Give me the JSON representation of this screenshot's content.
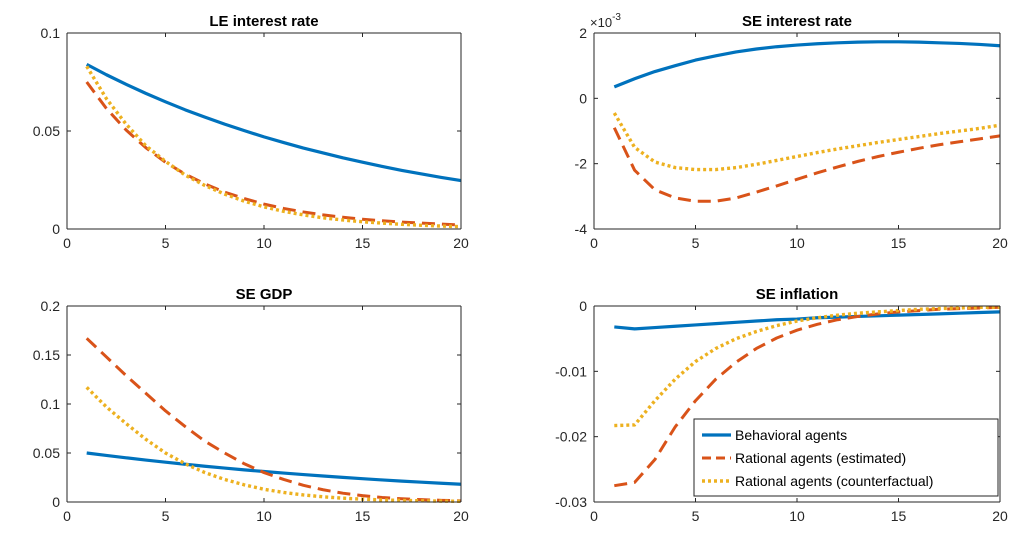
{
  "series_styles": [
    {
      "name": "Behavioral agents",
      "color": "#0072BD",
      "dash": "",
      "width": 3.2
    },
    {
      "name": "Rational agents (estimated)",
      "color": "#D95319",
      "dash": "13 7",
      "width": 3
    },
    {
      "name": "Rational agents (counterfactual)",
      "color": "#EDB120",
      "dash": "3 3",
      "width": 3.4
    }
  ],
  "legend": {
    "placement": "bottom-right of SE inflation panel",
    "entries": [
      "Behavioral agents",
      "Rational agents (estimated)",
      "Rational agents (counterfactual)"
    ]
  },
  "chart_data": [
    {
      "id": "le-rate",
      "type": "line",
      "title": "LE interest rate",
      "xlabel": "",
      "ylabel": "",
      "xlim": [
        0,
        20
      ],
      "ylim": [
        0,
        0.1
      ],
      "xticks": [
        0,
        5,
        10,
        15,
        20
      ],
      "xtick_labels": [
        "0",
        "5",
        "10",
        "15",
        "20"
      ],
      "yticks": [
        0,
        0.05,
        0.1
      ],
      "ytick_labels": [
        "0",
        "0.05",
        "0.1"
      ],
      "x": [
        1,
        2,
        3,
        4,
        5,
        6,
        7,
        8,
        9,
        10,
        11,
        12,
        13,
        14,
        15,
        16,
        17,
        18,
        19,
        20
      ],
      "series": [
        {
          "name": "Behavioral agents",
          "values": [
            0.084,
            0.0787,
            0.0738,
            0.0692,
            0.0649,
            0.0608,
            0.0571,
            0.0535,
            0.0502,
            0.047,
            0.0441,
            0.0413,
            0.0388,
            0.0363,
            0.0341,
            0.0319,
            0.0299,
            0.0281,
            0.0263,
            0.0247
          ]
        },
        {
          "name": "Rational agents (estimated)",
          "values": [
            0.075,
            0.0615,
            0.0505,
            0.0415,
            0.034,
            0.028,
            0.023,
            0.0188,
            0.0155,
            0.0127,
            0.0105,
            0.0087,
            0.0072,
            0.006,
            0.005,
            0.0042,
            0.0035,
            0.003,
            0.0025,
            0.002
          ]
        },
        {
          "name": "Rational agents (counterfactual)",
          "values": [
            0.083,
            0.0665,
            0.0535,
            0.0425,
            0.0345,
            0.0275,
            0.0222,
            0.0178,
            0.0142,
            0.0113,
            0.009,
            0.0072,
            0.0057,
            0.0046,
            0.0037,
            0.003,
            0.0024,
            0.0019,
            0.0015,
            0.0012
          ]
        }
      ]
    },
    {
      "id": "se-rate",
      "type": "line",
      "title": "SE interest rate",
      "xlabel": "",
      "ylabel": "",
      "exponent_label": "×10",
      "exponent_power": "-3",
      "xlim": [
        0,
        20
      ],
      "ylim": [
        -4,
        2
      ],
      "xticks": [
        0,
        5,
        10,
        15,
        20
      ],
      "xtick_labels": [
        "0",
        "5",
        "10",
        "15",
        "20"
      ],
      "yticks": [
        -4,
        -2,
        0,
        2
      ],
      "ytick_labels": [
        "-4",
        "-2",
        "0",
        "2"
      ],
      "x": [
        1,
        2,
        3,
        4,
        5,
        6,
        7,
        8,
        9,
        10,
        11,
        12,
        13,
        14,
        15,
        16,
        17,
        18,
        19,
        20
      ],
      "series": [
        {
          "name": "Behavioral agents",
          "values": [
            0.35,
            0.6,
            0.82,
            1.0,
            1.17,
            1.3,
            1.42,
            1.51,
            1.58,
            1.63,
            1.67,
            1.7,
            1.72,
            1.73,
            1.73,
            1.72,
            1.7,
            1.68,
            1.65,
            1.61
          ]
        },
        {
          "name": "Rational agents (estimated)",
          "values": [
            -0.9,
            -2.2,
            -2.8,
            -3.05,
            -3.15,
            -3.15,
            -3.05,
            -2.87,
            -2.68,
            -2.48,
            -2.28,
            -2.1,
            -1.93,
            -1.78,
            -1.65,
            -1.53,
            -1.42,
            -1.33,
            -1.24,
            -1.15
          ]
        },
        {
          "name": "Rational agents (counterfactual)",
          "values": [
            -0.45,
            -1.5,
            -1.95,
            -2.12,
            -2.18,
            -2.18,
            -2.12,
            -2.02,
            -1.9,
            -1.78,
            -1.66,
            -1.55,
            -1.45,
            -1.35,
            -1.26,
            -1.17,
            -1.08,
            -1.0,
            -0.92,
            -0.82
          ]
        }
      ]
    },
    {
      "id": "se-gdp",
      "type": "line",
      "title": "SE GDP",
      "xlabel": "",
      "ylabel": "",
      "xlim": [
        0,
        20
      ],
      "ylim": [
        0,
        0.2
      ],
      "xticks": [
        0,
        5,
        10,
        15,
        20
      ],
      "xtick_labels": [
        "0",
        "5",
        "10",
        "15",
        "20"
      ],
      "yticks": [
        0,
        0.05,
        0.1,
        0.15,
        0.2
      ],
      "ytick_labels": [
        "0",
        "0.05",
        "0.1",
        "0.15",
        "0.2"
      ],
      "x": [
        1,
        2,
        3,
        4,
        5,
        6,
        7,
        8,
        9,
        10,
        11,
        12,
        13,
        14,
        15,
        16,
        17,
        18,
        19,
        20
      ],
      "series": [
        {
          "name": "Behavioral agents",
          "values": [
            0.05,
            0.0475,
            0.0451,
            0.0428,
            0.0406,
            0.0385,
            0.0365,
            0.0346,
            0.0328,
            0.0311,
            0.0295,
            0.028,
            0.0265,
            0.0251,
            0.0238,
            0.0225,
            0.0213,
            0.0202,
            0.0191,
            0.0181
          ]
        },
        {
          "name": "Rational agents (estimated)",
          "values": [
            0.167,
            0.148,
            0.129,
            0.111,
            0.093,
            0.077,
            0.062,
            0.05,
            0.039,
            0.03,
            0.023,
            0.017,
            0.0125,
            0.009,
            0.0065,
            0.0046,
            0.0033,
            0.0024,
            0.0017,
            0.0012
          ]
        },
        {
          "name": "Rational agents (counterfactual)",
          "values": [
            0.117,
            0.097,
            0.08,
            0.064,
            0.05,
            0.039,
            0.03,
            0.023,
            0.0175,
            0.013,
            0.0097,
            0.0072,
            0.0053,
            0.0039,
            0.0029,
            0.0021,
            0.0016,
            0.0012,
            0.0009,
            0.0007
          ]
        }
      ]
    },
    {
      "id": "se-inflation",
      "type": "line",
      "title": "SE inflation",
      "xlabel": "",
      "ylabel": "",
      "xlim": [
        0,
        20
      ],
      "ylim": [
        -0.03,
        0
      ],
      "xticks": [
        0,
        5,
        10,
        15,
        20
      ],
      "xtick_labels": [
        "0",
        "5",
        "10",
        "15",
        "20"
      ],
      "yticks": [
        -0.03,
        -0.02,
        -0.01,
        0
      ],
      "ytick_labels": [
        "-0.03",
        "-0.02",
        "-0.01",
        "0"
      ],
      "x": [
        1,
        2,
        3,
        4,
        5,
        6,
        7,
        8,
        9,
        10,
        11,
        12,
        13,
        14,
        15,
        16,
        17,
        18,
        19,
        20
      ],
      "series": [
        {
          "name": "Behavioral agents",
          "values": [
            -0.0032,
            -0.0035,
            -0.0033,
            -0.0031,
            -0.0029,
            -0.0027,
            -0.0025,
            -0.0023,
            -0.0021,
            -0.002,
            -0.0018,
            -0.0017,
            -0.0016,
            -0.0015,
            -0.0014,
            -0.0013,
            -0.0012,
            -0.0011,
            -0.001,
            -0.0009
          ]
        },
        {
          "name": "Rational agents (estimated)",
          "values": [
            -0.0275,
            -0.027,
            -0.0235,
            -0.0185,
            -0.0145,
            -0.0112,
            -0.0086,
            -0.0065,
            -0.0049,
            -0.0037,
            -0.0028,
            -0.0021,
            -0.0016,
            -0.0012,
            -0.0009,
            -0.0007,
            -0.0005,
            -0.0004,
            -0.0003,
            -0.0002
          ]
        },
        {
          "name": "Rational agents (counterfactual)",
          "values": [
            -0.0183,
            -0.0182,
            -0.0145,
            -0.0112,
            -0.0085,
            -0.0065,
            -0.005,
            -0.0039,
            -0.003,
            -0.0023,
            -0.0018,
            -0.0014,
            -0.0011,
            -0.0009,
            -0.0007,
            -0.0005,
            -0.0004,
            -0.0003,
            -0.0002,
            -0.0002
          ]
        }
      ]
    }
  ]
}
